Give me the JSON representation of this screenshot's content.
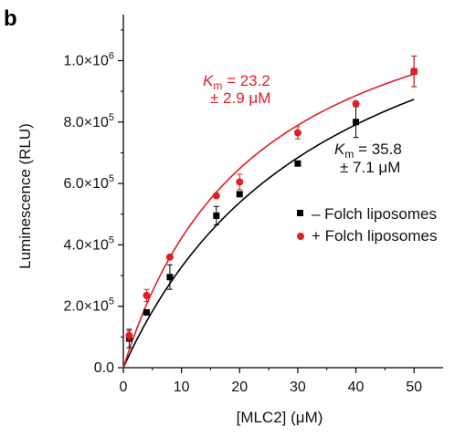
{
  "panel_label": "b",
  "chart_data": {
    "type": "scatter",
    "title": "",
    "xlabel": "[MLC2] (μM)",
    "ylabel": "Luminescence (RLU)",
    "xlim": [
      0,
      55
    ],
    "ylim": [
      0,
      1150000
    ],
    "x_ticks": [
      0,
      10,
      20,
      30,
      40,
      50
    ],
    "x_tick_labels": [
      "0",
      "10",
      "20",
      "30",
      "40",
      "50"
    ],
    "y_ticks": [
      0,
      200000,
      400000,
      600000,
      800000,
      1000000
    ],
    "y_tick_labels": [
      {
        "mant": "0.0",
        "base": "",
        "exp": ""
      },
      {
        "mant": "2.0",
        "base": "×10",
        "exp": "5"
      },
      {
        "mant": "4.0",
        "base": "×10",
        "exp": "5"
      },
      {
        "mant": "6.0",
        "base": "×10",
        "exp": "5"
      },
      {
        "mant": "8.0",
        "base": "×10",
        "exp": "5"
      },
      {
        "mant": "1.0",
        "base": "×10",
        "exp": "6"
      }
    ],
    "grid": false,
    "legend_position": "center-right",
    "series": [
      {
        "name": "– Folch liposomes",
        "color": "#000000",
        "marker": "square",
        "x": [
          1,
          4,
          8,
          16,
          20,
          30,
          40,
          50
        ],
        "y": [
          95000,
          180000,
          295000,
          495000,
          565000,
          665000,
          800000,
          965000
        ],
        "err": [
          30000,
          0,
          40000,
          30000,
          0,
          0,
          50000,
          50000
        ],
        "fit": {
          "vmax": 1500000,
          "km": 35.8
        }
      },
      {
        "name": "+ Folch liposomes",
        "color": "#e01e24",
        "marker": "circle",
        "x": [
          1,
          4,
          8,
          16,
          20,
          30,
          40,
          50
        ],
        "y": [
          105000,
          235000,
          360000,
          560000,
          605000,
          765000,
          860000,
          965000
        ],
        "err": [
          15000,
          20000,
          0,
          0,
          25000,
          20000,
          0,
          50000
        ],
        "fit": {
          "vmax": 1400000,
          "km": 23.2
        }
      }
    ],
    "annotations": [
      {
        "k": "K",
        "sub": "m",
        "value": " = 23.2",
        "error": "± 2.9 μM",
        "color": "#e01e24"
      },
      {
        "k": "K",
        "sub": "m",
        "value": " = 35.8",
        "error": "± 7.1 μM",
        "color": "#111111"
      }
    ]
  }
}
